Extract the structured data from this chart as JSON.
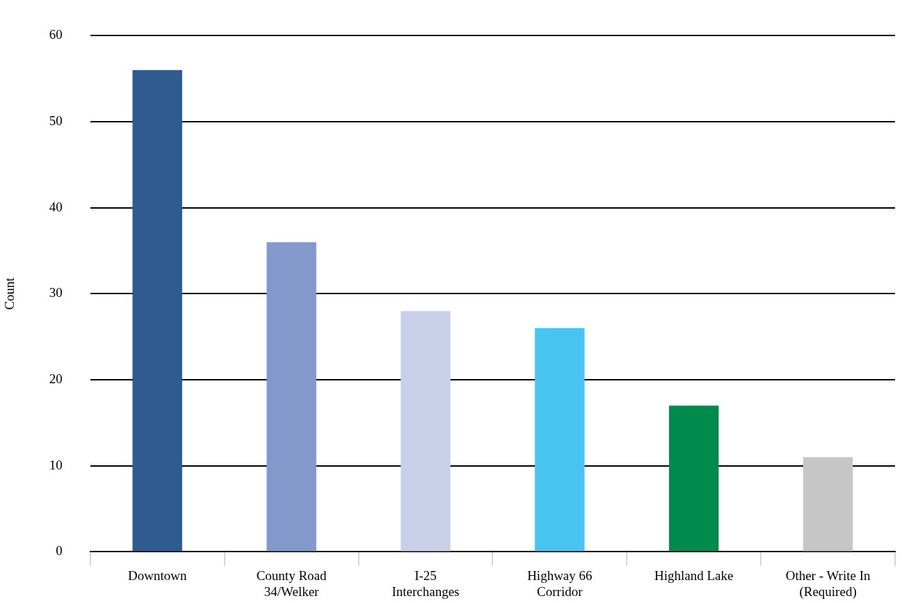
{
  "chart_data": {
    "type": "bar",
    "ylabel": "Count",
    "categories": [
      "Downtown",
      "County Road 34/Welker",
      "I-25 Interchanges",
      "Highway 66 Corridor",
      "Highland Lake",
      "Other - Write In (Required)"
    ],
    "values": [
      56,
      36,
      28,
      26,
      17,
      11
    ],
    "colors": [
      "#2e5c91",
      "#8399cc",
      "#c7cfe9",
      "#47c4f1",
      "#008a4c",
      "#c6c6c6"
    ],
    "ylim": [
      0,
      60
    ],
    "yticks": [
      0,
      10,
      20,
      30,
      40,
      50,
      60
    ],
    "grid": "y"
  }
}
